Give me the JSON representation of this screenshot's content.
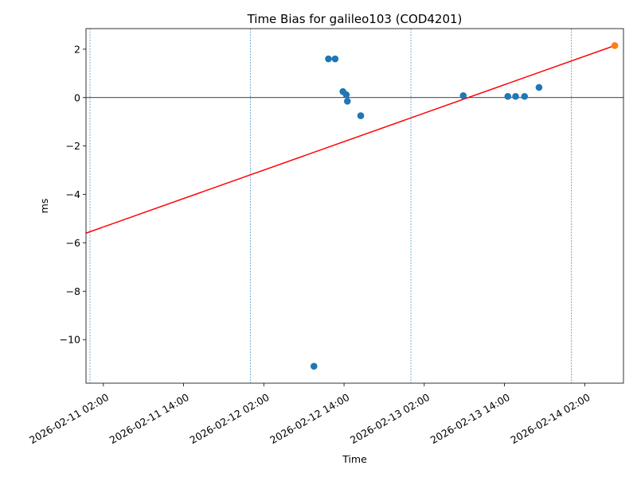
{
  "chart_data": {
    "type": "scatter",
    "title": "Time Bias for galileo103 (COD4201)",
    "xlabel": "Time",
    "ylabel": "ms",
    "xlim": [
      "2026-02-10 23:24",
      "2026-02-14 07:48"
    ],
    "ylim": [
      -11.8,
      2.85
    ],
    "x_ticks": [
      {
        "value": "2026-02-11 02:00",
        "label": "2026-02-11 02:00"
      },
      {
        "value": "2026-02-11 14:00",
        "label": "2026-02-11 14:00"
      },
      {
        "value": "2026-02-12 02:00",
        "label": "2026-02-12 02:00"
      },
      {
        "value": "2026-02-12 14:00",
        "label": "2026-02-12 14:00"
      },
      {
        "value": "2026-02-13 02:00",
        "label": "2026-02-13 02:00"
      },
      {
        "value": "2026-02-13 14:00",
        "label": "2026-02-13 14:00"
      },
      {
        "value": "2026-02-14 02:00",
        "label": "2026-02-14 02:00"
      }
    ],
    "y_ticks": [
      {
        "value": 2,
        "label": "2"
      },
      {
        "value": 0,
        "label": "0"
      },
      {
        "value": -2,
        "label": "−2"
      },
      {
        "value": -4,
        "label": "−4"
      },
      {
        "value": -6,
        "label": "−6"
      },
      {
        "value": -8,
        "label": "−8"
      },
      {
        "value": -10,
        "label": "−10"
      }
    ],
    "vertical_lines": [
      "2026-02-11 00:00",
      "2026-02-12 00:00",
      "2026-02-13 00:00",
      "2026-02-14 00:00"
    ],
    "hline": 0,
    "series": [
      {
        "color": "#1f77b4",
        "points": [
          {
            "x": "2026-02-12 09:30",
            "y": -11.1
          },
          {
            "x": "2026-02-12 11:40",
            "y": 1.6
          },
          {
            "x": "2026-02-12 12:40",
            "y": 1.6
          },
          {
            "x": "2026-02-12 13:50",
            "y": 0.25
          },
          {
            "x": "2026-02-12 14:20",
            "y": 0.12
          },
          {
            "x": "2026-02-12 14:30",
            "y": -0.15
          },
          {
            "x": "2026-02-12 16:30",
            "y": -0.75
          },
          {
            "x": "2026-02-13 07:50",
            "y": 0.08
          },
          {
            "x": "2026-02-13 14:30",
            "y": 0.05
          },
          {
            "x": "2026-02-13 15:40",
            "y": 0.05
          },
          {
            "x": "2026-02-13 17:00",
            "y": 0.05
          },
          {
            "x": "2026-02-13 19:10",
            "y": 0.42
          }
        ]
      },
      {
        "color": "#ff7f0e",
        "points": [
          {
            "x": "2026-02-14 06:30",
            "y": 2.15
          }
        ]
      }
    ],
    "fit_line": {
      "color": "#ff0000",
      "from": {
        "x": "2026-02-10 23:24",
        "y": -5.6
      },
      "to": {
        "x": "2026-02-14 06:30",
        "y": 2.15
      }
    },
    "grid": false,
    "legend": "none"
  }
}
